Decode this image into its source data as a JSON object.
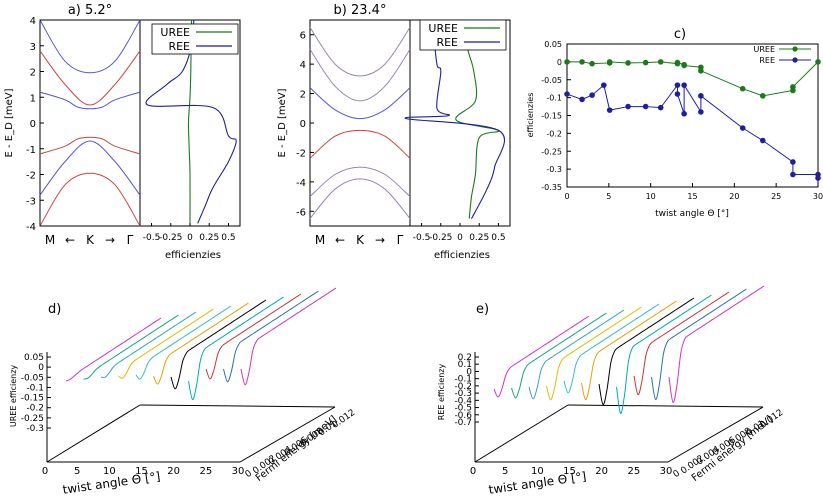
{
  "colors": {
    "uree": "#1b7a1b",
    "ree": "#1f1f9e",
    "band_blue": "#5555cc",
    "band_red": "#cc4444",
    "band_grey": "#9a86a8",
    "wire": [
      "#cc33cc",
      "#1aa37a",
      "#33a0cc",
      "#e6b800",
      "#33bbcc",
      "#e6a000",
      "#000000",
      "#00aaaa",
      "#cc3333",
      "#2a6fb0"
    ]
  },
  "chart_data": [
    {
      "id": "a",
      "type": "line",
      "title": "a) 5.2°",
      "ylabel": "E - E_D [meV]",
      "xlabel_bands": [
        "M",
        "←",
        "K",
        "→",
        "Γ"
      ],
      "ylim": [
        -4,
        4
      ],
      "yticks": [
        -4,
        -3,
        -2,
        -1,
        0,
        1,
        2,
        3,
        4
      ],
      "eff_xlabel": "efficienzies",
      "eff_xticks": [
        "-0.5",
        "-0.25",
        "0",
        "0.25",
        "0.5"
      ],
      "eff_xlim": [
        -0.65,
        0.65
      ],
      "legend": [
        "UREE",
        "REE"
      ],
      "legend_position": "top-right",
      "bands": [
        {
          "color": "blue",
          "k": [
            -1,
            -0.5,
            0,
            0.5,
            1
          ],
          "E": [
            4.0,
            2.4,
            1.95,
            2.4,
            4.0
          ]
        },
        {
          "color": "red",
          "k": [
            -1,
            -0.5,
            0,
            0.5,
            1
          ],
          "E": [
            2.8,
            1.5,
            0.7,
            1.5,
            2.8
          ]
        },
        {
          "color": "blue",
          "k": [
            -1,
            -0.5,
            -0.25,
            0,
            0.25,
            0.5,
            1
          ],
          "E": [
            1.2,
            0.9,
            0.62,
            0.55,
            0.62,
            0.9,
            1.2
          ]
        },
        {
          "color": "red",
          "k": [
            -1,
            -0.5,
            -0.25,
            0,
            0.25,
            0.5,
            1
          ],
          "E": [
            -1.2,
            -0.9,
            -0.62,
            -0.55,
            -0.62,
            -0.9,
            -1.2
          ]
        },
        {
          "color": "blue",
          "k": [
            -1,
            -0.5,
            0,
            0.5,
            1
          ],
          "E": [
            -2.8,
            -1.5,
            -0.7,
            -1.5,
            -2.8
          ]
        },
        {
          "color": "red",
          "k": [
            -1,
            -0.5,
            0,
            0.5,
            1
          ],
          "E": [
            -4.0,
            -2.4,
            -1.95,
            -2.4,
            -4.0
          ]
        }
      ],
      "series": [
        {
          "name": "UREE",
          "x": [
            0.02,
            0.01,
            0.0,
            -0.02,
            -0.01,
            0.0,
            0.0
          ],
          "y": [
            4,
            2,
            1,
            0,
            -1,
            -2,
            -4
          ]
        },
        {
          "name": "REE",
          "x": [
            0.05,
            0.02,
            -0.1,
            -0.3,
            -0.55,
            0.3,
            0.5,
            0.6,
            0.5,
            0.3,
            0.2,
            0.1
          ],
          "y": [
            4,
            3,
            2,
            1.5,
            0.7,
            0.6,
            -0.5,
            -0.7,
            -1.5,
            -2.5,
            -3.2,
            -3.9
          ]
        }
      ]
    },
    {
      "id": "b",
      "type": "line",
      "title": "b) 23.4°",
      "ylabel": "E - E_D [meV]",
      "xlabel_bands": [
        "M",
        "←",
        "K",
        "→",
        "Γ"
      ],
      "ylim": [
        -7,
        7
      ],
      "yticks": [
        -6,
        -4,
        -2,
        0,
        2,
        4,
        6
      ],
      "eff_xlabel": "efficienzies",
      "eff_xticks": [
        "-0.5",
        "-0.25",
        "0",
        "0.25",
        "0.5"
      ],
      "eff_xlim": [
        -0.65,
        0.65
      ],
      "legend": [
        "UREE",
        "REE"
      ],
      "legend_position": "top-right",
      "bands": [
        {
          "color": "grey",
          "k": [
            -1,
            -0.5,
            0,
            0.5,
            1
          ],
          "E": [
            6.5,
            4.0,
            3.2,
            4.0,
            6.5
          ]
        },
        {
          "color": "grey",
          "k": [
            -1,
            -0.5,
            0,
            0.5,
            1
          ],
          "E": [
            5.0,
            2.5,
            1.5,
            2.5,
            5.0
          ]
        },
        {
          "color": "blue",
          "k": [
            -1,
            -0.5,
            0,
            0.5,
            1
          ],
          "E": [
            2.4,
            0.9,
            0.3,
            0.9,
            2.4
          ]
        },
        {
          "color": "red",
          "k": [
            -1,
            -0.5,
            0,
            0.5,
            1
          ],
          "E": [
            -2.4,
            -0.9,
            -0.5,
            -0.9,
            -2.4
          ]
        },
        {
          "color": "grey",
          "k": [
            -1,
            -0.5,
            0,
            0.5,
            1
          ],
          "E": [
            -5.0,
            -3.5,
            -3.0,
            -3.5,
            -5.0
          ]
        },
        {
          "color": "grey",
          "k": [
            -1,
            -0.5,
            0,
            0.5,
            1
          ],
          "E": [
            -6.5,
            -4.5,
            -3.8,
            -4.5,
            -6.5
          ]
        }
      ],
      "series": [
        {
          "name": "UREE",
          "x": [
            0.05,
            0.1,
            0.18,
            0.2,
            -0.05,
            0.5,
            0.25,
            0.2,
            0.15,
            0.12
          ],
          "y": [
            6.5,
            5,
            3.5,
            1.5,
            0.2,
            -0.5,
            -1,
            -3.5,
            -5,
            -6.5
          ]
        },
        {
          "name": "REE",
          "x": [
            -0.35,
            -0.3,
            -0.25,
            -0.3,
            -0.15,
            -0.7,
            0.5,
            0.45,
            0.35,
            0.15
          ],
          "y": [
            6.5,
            4,
            3.5,
            1,
            0.5,
            0.3,
            -0.5,
            -3,
            -4.5,
            -6.5
          ]
        }
      ]
    },
    {
      "id": "c",
      "type": "scatter",
      "title": "c)",
      "xlabel": "twist angle Θ [°]",
      "ylabel": "efficienzies",
      "xlim": [
        0,
        30
      ],
      "ylim": [
        -0.35,
        0.05
      ],
      "xticks": [
        0,
        5,
        10,
        15,
        20,
        25,
        30
      ],
      "yticks": [
        -0.35,
        -0.3,
        -0.25,
        -0.2,
        -0.15,
        -0.1,
        -0.05,
        0,
        0.05
      ],
      "ytick_labels": [
        "-0.35",
        "-0.3",
        "-0.25",
        "-0.2",
        "-0.15",
        "-0.1",
        "-0.05",
        "0",
        "0.05"
      ],
      "legend": [
        "UREE",
        "REE"
      ],
      "legend_position": "top-right",
      "series": [
        {
          "name": "UREE",
          "x": [
            0,
            1.8,
            3.0,
            5.1,
            5.1,
            7.3,
            9.4,
            11.2,
            13.2,
            13.2,
            14.0,
            14.0,
            16.0,
            16.0,
            21.0,
            23.4,
            27.0,
            27.0,
            30.0
          ],
          "y": [
            0,
            0,
            -0.005,
            -0.003,
            0,
            -0.003,
            -0.002,
            0,
            -0.005,
            -0.002,
            -0.008,
            -0.01,
            -0.015,
            -0.025,
            -0.075,
            -0.095,
            -0.08,
            -0.07,
            0
          ]
        },
        {
          "name": "REE",
          "x": [
            0,
            1.8,
            3.0,
            4.4,
            5.1,
            7.3,
            9.4,
            11.2,
            13.2,
            13.2,
            14.0,
            14.0,
            16.0,
            16.0,
            21.0,
            23.4,
            27.0,
            27.0,
            30.0,
            30.0
          ],
          "y": [
            -0.09,
            -0.105,
            -0.093,
            -0.065,
            -0.135,
            -0.125,
            -0.125,
            -0.128,
            -0.065,
            -0.09,
            -0.145,
            -0.065,
            -0.14,
            -0.095,
            -0.185,
            -0.22,
            -0.28,
            -0.315,
            -0.315,
            -0.325
          ]
        }
      ]
    },
    {
      "id": "d",
      "type": "line",
      "title": "d)",
      "zlabel": "UREE efficienzy",
      "xlabel": "twist angle Θ [°]",
      "ylabel": "Fermi energy [meV]",
      "zlim": [
        -0.3,
        0.05
      ],
      "zticks": [
        "0.05",
        "0",
        "-0.05",
        "-0.1",
        "-0.15",
        "-0.2",
        "-0.25",
        "-0.3"
      ],
      "xticks": [
        "0",
        "5",
        "10",
        "15",
        "20",
        "25",
        "30"
      ],
      "yticks": [
        "0",
        "0.002",
        "0.004",
        "0.006",
        "0.008",
        "0.01",
        "0.012"
      ]
    },
    {
      "id": "e",
      "type": "line",
      "title": "e)",
      "zlabel": "REE efficienzy",
      "xlabel": "twist angle Θ [°]",
      "ylabel": "Fermi energy [meV]",
      "zlim": [
        -0.7,
        0.2
      ],
      "zticks": [
        "0.2",
        "0.1",
        "0",
        "-0.1",
        "-0.2",
        "-0.3",
        "-0.4",
        "-0.5",
        "-0.6",
        "-0.7"
      ],
      "xticks": [
        "0",
        "5",
        "10",
        "15",
        "20",
        "25",
        "30"
      ],
      "yticks": [
        "0",
        "0.002",
        "0.004",
        "0.006",
        "0.008",
        "0.01",
        "0.012"
      ]
    }
  ]
}
